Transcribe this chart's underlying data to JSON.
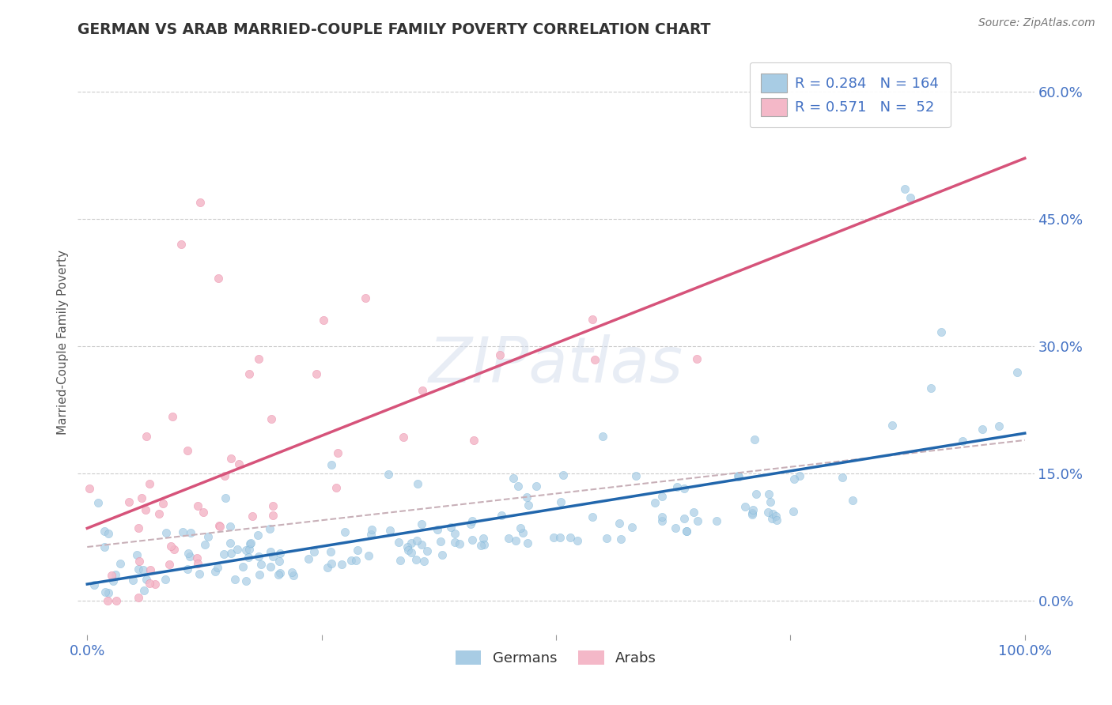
{
  "title": "GERMAN VS ARAB MARRIED-COUPLE FAMILY POVERTY CORRELATION CHART",
  "source_text": "Source: ZipAtlas.com",
  "ylabel": "Married-Couple Family Poverty",
  "watermark": "ZIPatlas",
  "legend_german_R": 0.284,
  "legend_german_N": 164,
  "legend_arab_R": 0.571,
  "legend_arab_N": 52,
  "german_color": "#a8cce4",
  "german_color_edge": "#6baed6",
  "arab_color": "#f4b8c8",
  "arab_color_edge": "#e87fa0",
  "german_line_color": "#2166ac",
  "arab_line_color": "#d6537a",
  "dashed_line_color": "#c8b0b8",
  "background_color": "#ffffff",
  "grid_color": "#cccccc",
  "title_color": "#333333",
  "tick_color": "#4472c4",
  "legend_text_color": "#4472c4",
  "ylabel_color": "#555555",
  "source_color": "#777777",
  "ylim": [
    -0.04,
    0.65
  ],
  "xlim": [
    -0.01,
    1.01
  ],
  "yticks": [
    0.0,
    0.15,
    0.3,
    0.45,
    0.6
  ],
  "xticks": [
    0.0,
    1.0
  ],
  "german_n": 164,
  "arab_n": 52
}
